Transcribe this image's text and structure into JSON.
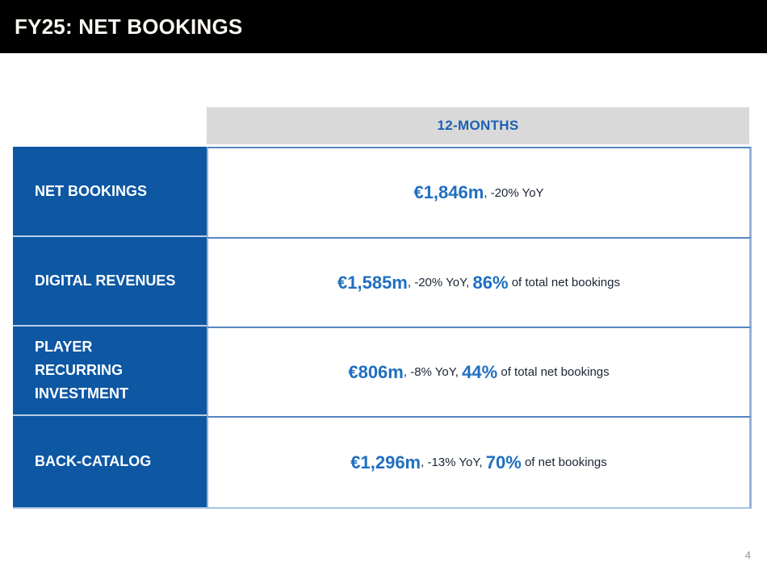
{
  "slide": {
    "title": "FY25: NET BOOKINGS",
    "page_number": "4"
  },
  "table": {
    "column_header": "12-MONTHS",
    "rows": [
      {
        "label": "NET BOOKINGS",
        "segments": [
          {
            "t": "€1,846m"
          },
          {
            "t": ", -20% YoY"
          }
        ]
      },
      {
        "label": "DIGITAL REVENUES",
        "segments": [
          {
            "t": "€1,585m"
          },
          {
            "t": ", -20% YoY, "
          },
          {
            "t": "86%"
          },
          {
            "t": " of total net bookings"
          }
        ]
      },
      {
        "label": "PLAYER\nRECURRING\nINVESTMENT",
        "segments": [
          {
            "t": "€806m"
          },
          {
            "t": ", -8% YoY, "
          },
          {
            "t": "44%"
          },
          {
            "t": " of total net bookings"
          }
        ]
      },
      {
        "label": "BACK-CATALOG",
        "segments": [
          {
            "t": "€1,296m"
          },
          {
            "t": ", -13% YoY, "
          },
          {
            "t": "70%"
          },
          {
            "t": " of net bookings"
          }
        ]
      }
    ]
  },
  "colors": {
    "title_bar_bg": "#000000",
    "title_text": "#fcf9f1",
    "header_cell_bg": "#d9d9d9",
    "header_text_blue": "#1c61b3",
    "row_label_bg": "#0d57a3",
    "value_blue": "#1f6fc1",
    "value_dark_text": "#1a2433",
    "border_medium_blue": "#5585c1",
    "border_light_blue": "#95b3d7"
  }
}
